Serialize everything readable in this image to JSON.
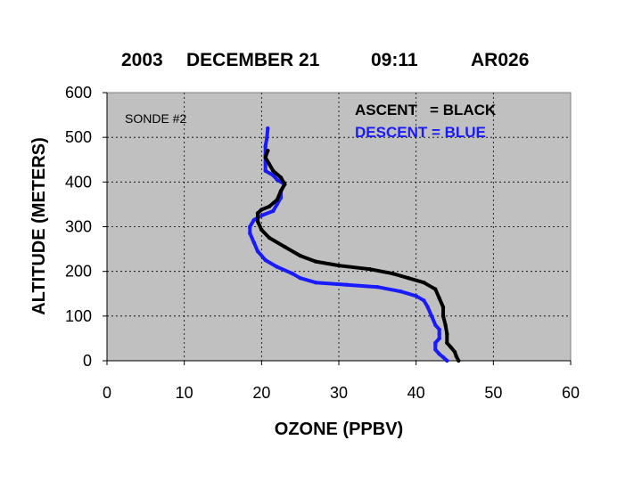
{
  "colors": {
    "plot_background": "#c0c0c0",
    "ascent": "#000000",
    "descent": "#1a1aff",
    "grid": "#000000"
  },
  "chart_data": {
    "type": "line",
    "title_parts": [
      "2003",
      "DECEMBER 21",
      "09:11",
      "AR026"
    ],
    "xlabel": "OZONE (PPBV)",
    "ylabel": "ALTITUDE (METERS)",
    "xlim": [
      0,
      60
    ],
    "ylim": [
      0,
      600
    ],
    "xticks": [
      0,
      10,
      20,
      30,
      40,
      50,
      60
    ],
    "yticks": [
      0,
      100,
      200,
      300,
      400,
      500,
      600
    ],
    "grid": true,
    "annotation": "SONDE #2",
    "legend_position": "top-right",
    "legend": [
      {
        "text": "ASCENT   = BLACK",
        "color": "#000000"
      },
      {
        "text": "DESCENT = BLUE",
        "color": "#1a1aff"
      }
    ],
    "series": [
      {
        "role": "ascent",
        "color": "#000000",
        "points": [
          [
            45.5,
            0
          ],
          [
            45.2,
            10
          ],
          [
            45,
            20
          ],
          [
            44.5,
            30
          ],
          [
            44,
            40
          ],
          [
            44,
            60
          ],
          [
            43.8,
            80
          ],
          [
            43.5,
            100
          ],
          [
            43.5,
            120
          ],
          [
            43,
            140
          ],
          [
            42.5,
            160
          ],
          [
            41,
            175
          ],
          [
            39,
            185
          ],
          [
            37,
            195
          ],
          [
            34,
            205
          ],
          [
            30,
            213
          ],
          [
            27,
            222
          ],
          [
            25,
            235
          ],
          [
            23,
            255
          ],
          [
            21,
            275
          ],
          [
            20,
            293
          ],
          [
            19.5,
            312
          ],
          [
            19.5,
            330
          ],
          [
            20,
            338
          ],
          [
            21,
            345
          ],
          [
            22,
            360
          ],
          [
            22.5,
            380
          ],
          [
            23,
            395
          ],
          [
            22.5,
            410
          ],
          [
            21.5,
            425
          ],
          [
            21,
            440
          ],
          [
            20.5,
            455
          ],
          [
            20.8,
            470
          ]
        ]
      },
      {
        "role": "descent",
        "color": "#1a1aff",
        "points": [
          [
            44,
            0
          ],
          [
            43.5,
            8
          ],
          [
            43,
            15
          ],
          [
            42.5,
            25
          ],
          [
            42.5,
            35
          ],
          [
            42.5,
            40
          ],
          [
            43,
            50
          ],
          [
            43,
            60
          ],
          [
            43,
            70
          ],
          [
            42.5,
            80
          ],
          [
            42,
            100
          ],
          [
            41.5,
            120
          ],
          [
            41,
            135
          ],
          [
            40,
            145
          ],
          [
            38,
            155
          ],
          [
            35,
            165
          ],
          [
            31,
            170
          ],
          [
            27,
            175
          ],
          [
            25,
            185
          ],
          [
            24,
            195
          ],
          [
            22,
            210
          ],
          [
            20.5,
            225
          ],
          [
            19.5,
            245
          ],
          [
            19,
            265
          ],
          [
            18.5,
            285
          ],
          [
            18.5,
            300
          ],
          [
            19,
            315
          ],
          [
            20,
            325
          ],
          [
            21.5,
            335
          ],
          [
            22,
            350
          ],
          [
            22.5,
            365
          ],
          [
            22.5,
            380
          ],
          [
            23,
            395
          ],
          [
            22,
            405
          ],
          [
            21.5,
            415
          ],
          [
            20.5,
            425
          ],
          [
            20.5,
            445
          ],
          [
            20.5,
            460
          ],
          [
            20.5,
            480
          ],
          [
            20.7,
            500
          ],
          [
            20.8,
            520
          ]
        ]
      }
    ]
  }
}
